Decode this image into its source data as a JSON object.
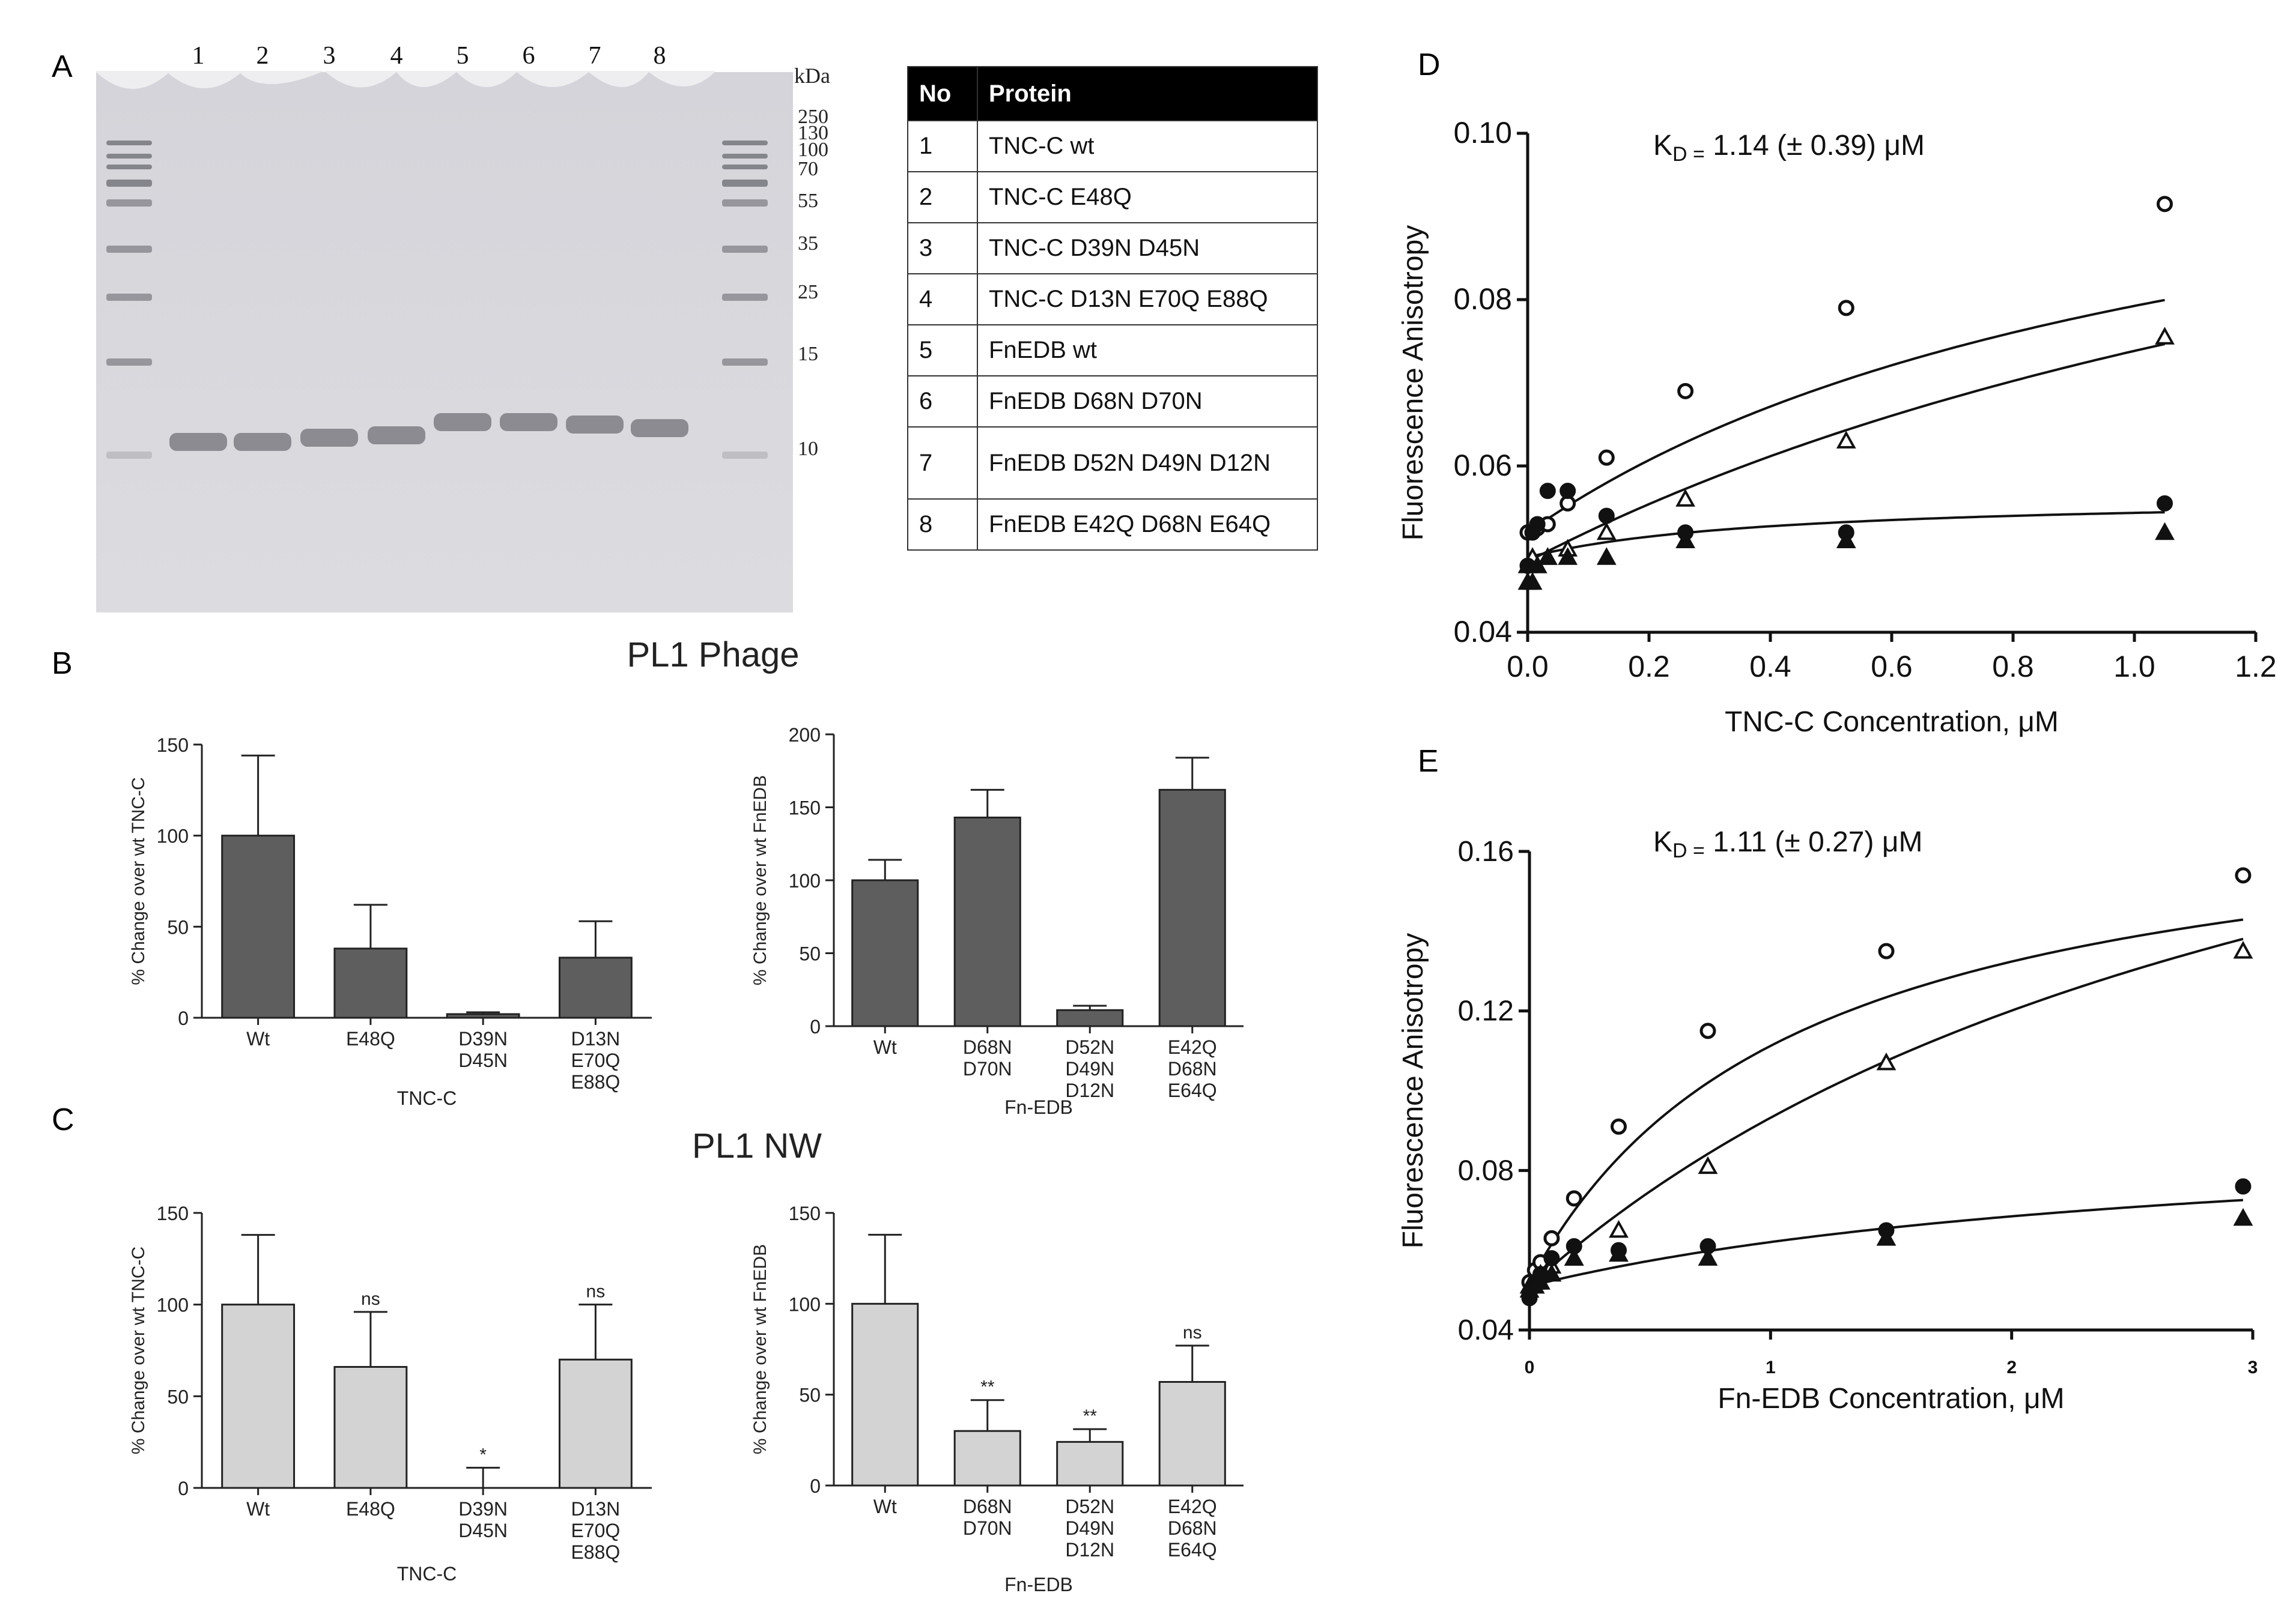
{
  "panel_labels": {
    "a": "A",
    "b": "B",
    "c": "C",
    "d": "D",
    "e": "E"
  },
  "gel": {
    "lane_numbers": [
      "1",
      "2",
      "3",
      "4",
      "5",
      "6",
      "7",
      "8"
    ],
    "ladder_unit": "kDa",
    "ladder_marks": [
      "250",
      "130",
      "100",
      "70",
      "55",
      "35",
      "25",
      "15",
      "10"
    ]
  },
  "protein_table": {
    "headers": {
      "no": "No",
      "protein": "Protein"
    },
    "rows": [
      {
        "no": "1",
        "protein": "TNC-C wt"
      },
      {
        "no": "2",
        "protein": "TNC-C E48Q"
      },
      {
        "no": "3",
        "protein": "TNC-C D39N D45N"
      },
      {
        "no": "4",
        "protein": "TNC-C D13N E70Q E88Q"
      },
      {
        "no": "5",
        "protein": "FnEDB wt"
      },
      {
        "no": "6",
        "protein": "FnEDB D68N D70N"
      },
      {
        "no": "7",
        "protein": "FnEDB D52N D49N D12N"
      },
      {
        "no": "8",
        "protein": "FnEDB E42Q D68N E64Q"
      }
    ]
  },
  "titles": {
    "b": "PL1 Phage",
    "c": "PL1 NW"
  },
  "chart_data": [
    {
      "id": "b_tnc",
      "type": "bar",
      "title": "",
      "xlabel": "TNC-C",
      "ylabel": "% Change over wt TNC-C",
      "ylim": [
        0,
        150
      ],
      "yticks": [
        "0",
        "50",
        "100",
        "150"
      ],
      "categories": [
        "Wt",
        "E48Q",
        "D39N D45N",
        "D13N E70Q E88Q"
      ],
      "values": [
        100,
        38,
        2,
        33
      ],
      "errors": [
        44,
        24,
        1,
        20
      ],
      "annotations": [
        "",
        "",
        "",
        ""
      ]
    },
    {
      "id": "b_fn",
      "type": "bar",
      "title": "",
      "xlabel": "Fn-EDB",
      "ylabel": "% Change over wt FnEDB",
      "ylim": [
        0,
        200
      ],
      "yticks": [
        "0",
        "50",
        "100",
        "150",
        "200"
      ],
      "categories": [
        "Wt",
        "D68N D70N",
        "D52N D49N D12N",
        "E42Q D68N E64Q"
      ],
      "values": [
        100,
        143,
        11,
        162
      ],
      "errors": [
        14,
        19,
        3,
        22
      ],
      "annotations": [
        "",
        "",
        "",
        ""
      ]
    },
    {
      "id": "c_tnc",
      "type": "bar",
      "title": "",
      "xlabel": "TNC-C",
      "ylabel": "% Change over wt TNC-C",
      "ylim": [
        0,
        150
      ],
      "yticks": [
        "0",
        "50",
        "100",
        "150"
      ],
      "categories": [
        "Wt",
        "E48Q",
        "D39N D45N",
        "D13N E70Q E88Q"
      ],
      "values": [
        100,
        66,
        0,
        70
      ],
      "errors": [
        38,
        30,
        11,
        30
      ],
      "annotations": [
        "",
        "ns",
        "*",
        "ns"
      ]
    },
    {
      "id": "c_fn",
      "type": "bar",
      "title": "",
      "xlabel": "Fn-EDB",
      "ylabel": "% Change over wt FnEDB",
      "ylim": [
        0,
        150
      ],
      "yticks": [
        "0",
        "50",
        "100",
        "150"
      ],
      "categories": [
        "Wt",
        "D68N D70N",
        "D52N D49N D12N",
        "E42Q D68N E64Q"
      ],
      "values": [
        100,
        30,
        24,
        57
      ],
      "errors": [
        38,
        17,
        7,
        20
      ],
      "annotations": [
        "",
        "**",
        "**",
        "ns"
      ]
    },
    {
      "id": "d",
      "type": "scatter",
      "title": "",
      "kd_label": "K",
      "kd_sub": "D =",
      "kd_value": " 1.14 (± 0.39) μM",
      "xlabel": "TNC-C Concentration, μM",
      "ylabel": "Fluorescence Anisotropy",
      "xlim": [
        0,
        1.2
      ],
      "ylim": [
        0.04,
        0.1
      ],
      "xticks": [
        "0.0",
        "0.2",
        "0.4",
        "0.6",
        "0.8",
        "1.0",
        "1.2"
      ],
      "yticks": [
        "0.04",
        "0.06",
        "0.08",
        "0.10"
      ],
      "series": [
        {
          "name": "open circle",
          "marker": "circle-open",
          "x": [
            0,
            0.008,
            0.016,
            0.033,
            0.066,
            0.13,
            0.26,
            0.525,
            1.05
          ],
          "y": [
            0.052,
            0.052,
            0.0525,
            0.053,
            0.0555,
            0.061,
            0.069,
            0.079,
            0.0915
          ],
          "fit": {
            "base": 0.052,
            "bmax": 0.0583,
            "kd": 1.14
          }
        },
        {
          "name": "open triangle",
          "marker": "triangle-open",
          "x": [
            0,
            0.008,
            0.016,
            0.033,
            0.066,
            0.13,
            0.26,
            0.525,
            1.05
          ],
          "y": [
            0.048,
            0.049,
            0.048,
            0.049,
            0.05,
            0.052,
            0.056,
            0.063,
            0.0755
          ],
          "fit": {
            "base": 0.0485,
            "bmax": 0.076,
            "kd": 2.0
          }
        },
        {
          "name": "filled circle",
          "marker": "circle-filled",
          "x": [
            0,
            0.008,
            0.016,
            0.033,
            0.066,
            0.13,
            0.26,
            0.525,
            1.05
          ],
          "y": [
            0.048,
            0.052,
            0.053,
            0.057,
            0.057,
            0.054,
            0.052,
            0.052,
            0.0555
          ],
          "fit": {
            "base": 0.049,
            "bmax": 0.0075,
            "kd": 0.4
          }
        },
        {
          "name": "filled triangle",
          "marker": "triangle-filled",
          "x": [
            0,
            0.008,
            0.016,
            0.033,
            0.066,
            0.13,
            0.26,
            0.525,
            1.05
          ],
          "y": [
            0.046,
            0.046,
            0.048,
            0.049,
            0.049,
            0.049,
            0.051,
            0.051,
            0.052
          ],
          "fit": null
        }
      ]
    },
    {
      "id": "e",
      "type": "scatter",
      "title": "",
      "kd_label": "K",
      "kd_sub": "D =",
      "kd_value": " 1.11 (± 0.27) μM",
      "xlabel": "Fn-EDB Concentration, μM",
      "ylabel": "Fluorescence Anisotropy",
      "xlim": [
        0,
        3
      ],
      "ylim": [
        0.04,
        0.16
      ],
      "xticks": [
        "0",
        "1",
        "2",
        "3"
      ],
      "yticks": [
        "0.04",
        "0.08",
        "0.12",
        "0.16"
      ],
      "series": [
        {
          "name": "open circle",
          "marker": "circle-open",
          "x": [
            0,
            0.023,
            0.046,
            0.092,
            0.185,
            0.37,
            0.74,
            1.48,
            2.96
          ],
          "y": [
            0.052,
            0.055,
            0.057,
            0.063,
            0.073,
            0.091,
            0.115,
            0.135,
            0.154
          ],
          "fit": {
            "base": 0.052,
            "bmax": 0.125,
            "kd": 1.11
          }
        },
        {
          "name": "open triangle",
          "marker": "triangle-open",
          "x": [
            0,
            0.023,
            0.046,
            0.092,
            0.185,
            0.37,
            0.74,
            1.48,
            2.96
          ],
          "y": [
            0.051,
            0.052,
            0.054,
            0.056,
            0.058,
            0.065,
            0.081,
            0.107,
            0.135
          ],
          "fit": {
            "base": 0.051,
            "bmax": 0.19,
            "kd": 3.5
          }
        },
        {
          "name": "filled circle",
          "marker": "circle-filled",
          "x": [
            0,
            0.023,
            0.046,
            0.092,
            0.185,
            0.37,
            0.74,
            1.48,
            2.96
          ],
          "y": [
            0.048,
            0.052,
            0.054,
            0.058,
            0.061,
            0.06,
            0.061,
            0.065,
            0.076
          ],
          "fit": {
            "base": 0.051,
            "bmax": 0.042,
            "kd": 2.8
          }
        },
        {
          "name": "filled triangle",
          "marker": "triangle-filled",
          "x": [
            0,
            0.023,
            0.046,
            0.092,
            0.185,
            0.37,
            0.74,
            1.48,
            2.96
          ],
          "y": [
            0.05,
            0.051,
            0.052,
            0.054,
            0.058,
            0.059,
            0.058,
            0.063,
            0.068
          ],
          "fit": null
        }
      ]
    }
  ]
}
